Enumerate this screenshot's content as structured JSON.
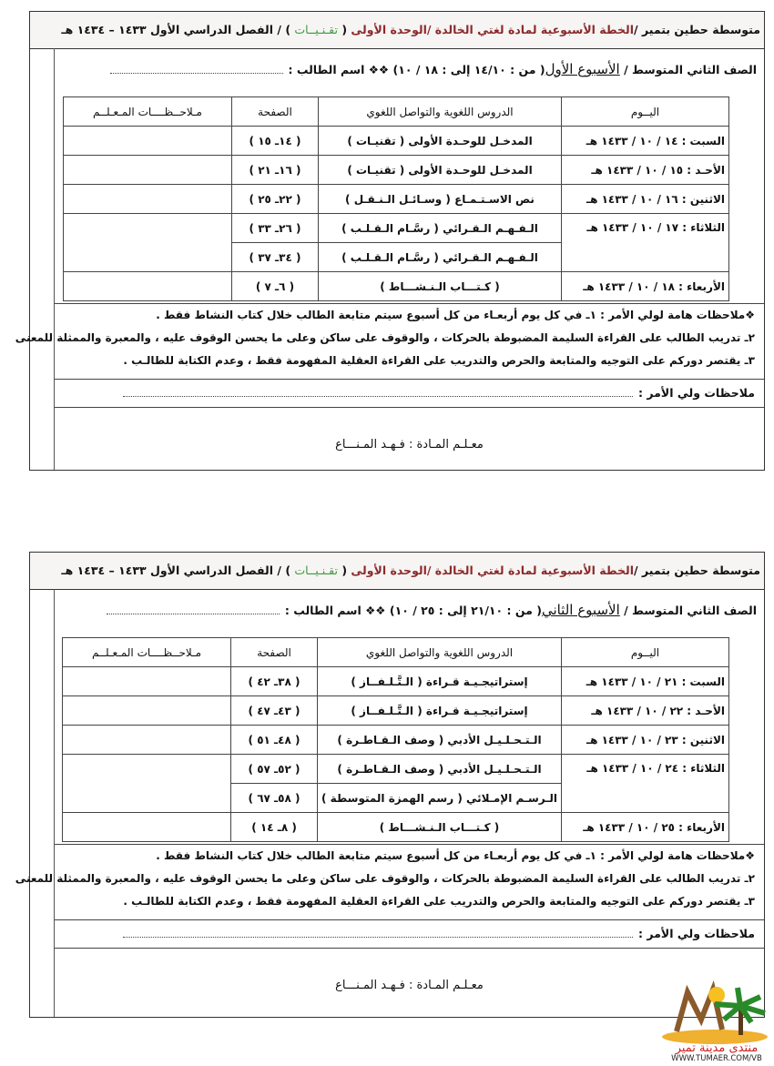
{
  "header": {
    "school": "متوسطة حطين بتمير /",
    "plan": "الخطة الأسبوعية لمادة لغتي الخالدة /الوحدة الأولى",
    "unit_open": "(",
    "unit": "تقـنـيــات",
    "unit_close": ")",
    "term": "/ الفصل الدراسي الأول ١٤٣٣ – ١٤٣٤ هـ"
  },
  "columns": [
    "اليــوم",
    "الدروس اللغوية والتواصل اللغوي",
    "الصفحة",
    "مـلاحــظــــات المـعـلــم"
  ],
  "weeks": [
    {
      "grade": "الصف الثاني المتوسط /",
      "week": "الأسبوع الأول",
      "range": "( من : ١٤/١٠ إلى : ١٨ / ١٠)",
      "student_label": "❖❖ اسم الطالب :",
      "rows": [
        {
          "day": "السبت : ١٤ / ١٠ / ١٤٣٣ هـ",
          "lessons": [
            {
              "lesson": "المدخـل للوحـدة الأولى ( تقنيـات )",
              "pages": "( ١٤ـ ١٥ )"
            }
          ]
        },
        {
          "day": "الأحـد : ١٥ / ١٠ / ١٤٣٣ هـ",
          "lessons": [
            {
              "lesson": "المدخـل للوحـدة الأولى ( تقنيـات )",
              "pages": "( ١٦ـ ٢١ )"
            }
          ]
        },
        {
          "day": "الاثنين : ١٦ / ١٠ / ١٤٣٣ هـ",
          "lessons": [
            {
              "lesson": "نص الاسـتـمـاع ( وسـائـل الـنـقـل )",
              "pages": "( ٢٢ـ ٢٥ )"
            }
          ]
        },
        {
          "day": "الثلاثاء : ١٧ / ١٠ / ١٤٣٣ هـ",
          "lessons": [
            {
              "lesson": "الـفـهـم الـقـرائي ( رسَّـام الـقـلـب )",
              "pages": "( ٢٦ـ ٣٣ )"
            },
            {
              "lesson": "الـفـهـم الـقـرائي ( رسَّـام الـقـلـب )",
              "pages": "( ٣٤ـ ٣٧ )"
            }
          ]
        },
        {
          "day": "الأربعاء : ١٨ / ١٠ / ١٤٣٣ هـ",
          "lessons": [
            {
              "lesson": "( كـتـــاب الـنـشـــاط )",
              "pages": "( ٦ـ ٧ )"
            }
          ]
        }
      ]
    },
    {
      "grade": "الصف الثاني المتوسط /",
      "week": "الأسبوع الثاني",
      "range": "( من : ٢١/١٠ إلى : ٢٥ / ١٠)",
      "student_label": "❖❖ اسم الطالب :",
      "rows": [
        {
          "day": "السبت : ٢١ / ١٠ / ١٤٣٣ هـ",
          "lessons": [
            {
              "lesson": "إستراتيجـيـة قـراءة ( الـتَّـلـفــاز )",
              "pages": "( ٣٨ـ ٤٢ )"
            }
          ]
        },
        {
          "day": "الأحـد : ٢٢ / ١٠ / ١٤٣٣ هـ",
          "lessons": [
            {
              "lesson": "إستراتيجـيـة قـراءة ( الـتَّـلـفــاز )",
              "pages": "( ٤٣ـ ٤٧ )"
            }
          ]
        },
        {
          "day": "الاثنين : ٢٣ / ١٠ / ١٤٣٣ هـ",
          "lessons": [
            {
              "lesson": "الـتـحـلـيـل الأدبي ( وصف الـقـاطـرة )",
              "pages": "( ٤٨ـ ٥١ )"
            }
          ]
        },
        {
          "day": "الثلاثاء : ٢٤ / ١٠ / ١٤٣٣ هـ",
          "lessons": [
            {
              "lesson": "الـتـحـلـيـل الأدبي ( وصف الـقـاطـرة )",
              "pages": "( ٥٢ـ ٥٧ )"
            },
            {
              "lesson": "الـرسـم الإمـلائي ( رسم الهمزة المتوسطة )",
              "pages": "( ٥٨ـ ٦٧ )"
            }
          ]
        },
        {
          "day": "الأربعاء : ٢٥ / ١٠ / ١٤٣٣ هـ",
          "lessons": [
            {
              "lesson": "( كـتـــاب الـنـشـــاط )",
              "pages": "( ٨ـ ١٤ )"
            }
          ]
        }
      ]
    }
  ],
  "notes": [
    "❖ملاحظات هامة لولي الأمر : ١ـ في كل يوم أربعـاء من كل أسبوع سيتم متابعة الطالب خلال كتاب النشاط فقط .",
    "٢ـ تدريب الطالب على القراءة السليمة المضبوطة بالحركات ، والوقوف على ساكن وعلى ما يحسن الوقوف عليه ، والمعبرة والممثلة للمعنى",
    "٣ـ يقتصر دوركم على التوجيه والمتابعة والحرص والتدريب على القراءة العقلية المفهومة فقط ، وعدم الكتابة للطالـب ."
  ],
  "parent_notes_label": "ملاحظات ولي الأمر :",
  "teacher": "معـلـم المـادة : فـهـد المـنـــاع",
  "logo": {
    "text": "منتدى مدينة تمير",
    "url": "WWW.TUMAER.COM/VB"
  },
  "colors": {
    "title_red": "#8b2a2a",
    "unit_green": "#3a9a3a"
  }
}
